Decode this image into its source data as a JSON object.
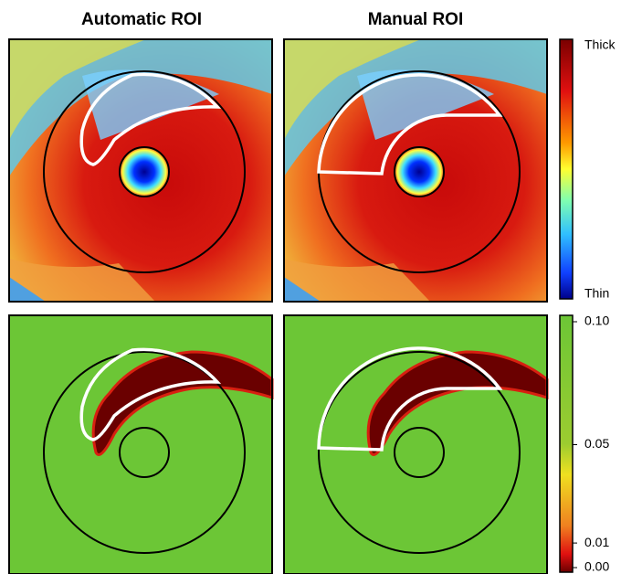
{
  "columns": [
    "Automatic ROI",
    "Manual ROI"
  ],
  "thickness_colorbar": {
    "top_label": "Thick",
    "bottom_label": "Thin"
  },
  "pvalue_colorbar": {
    "ticks": [
      {
        "value": 0.1,
        "label": "0.10"
      },
      {
        "value": 0.05,
        "label": "0.05"
      },
      {
        "value": 0.01,
        "label": "0.01"
      },
      {
        "value": 0.0,
        "label": "0.00"
      }
    ],
    "range": [
      0.0,
      0.1
    ]
  }
}
